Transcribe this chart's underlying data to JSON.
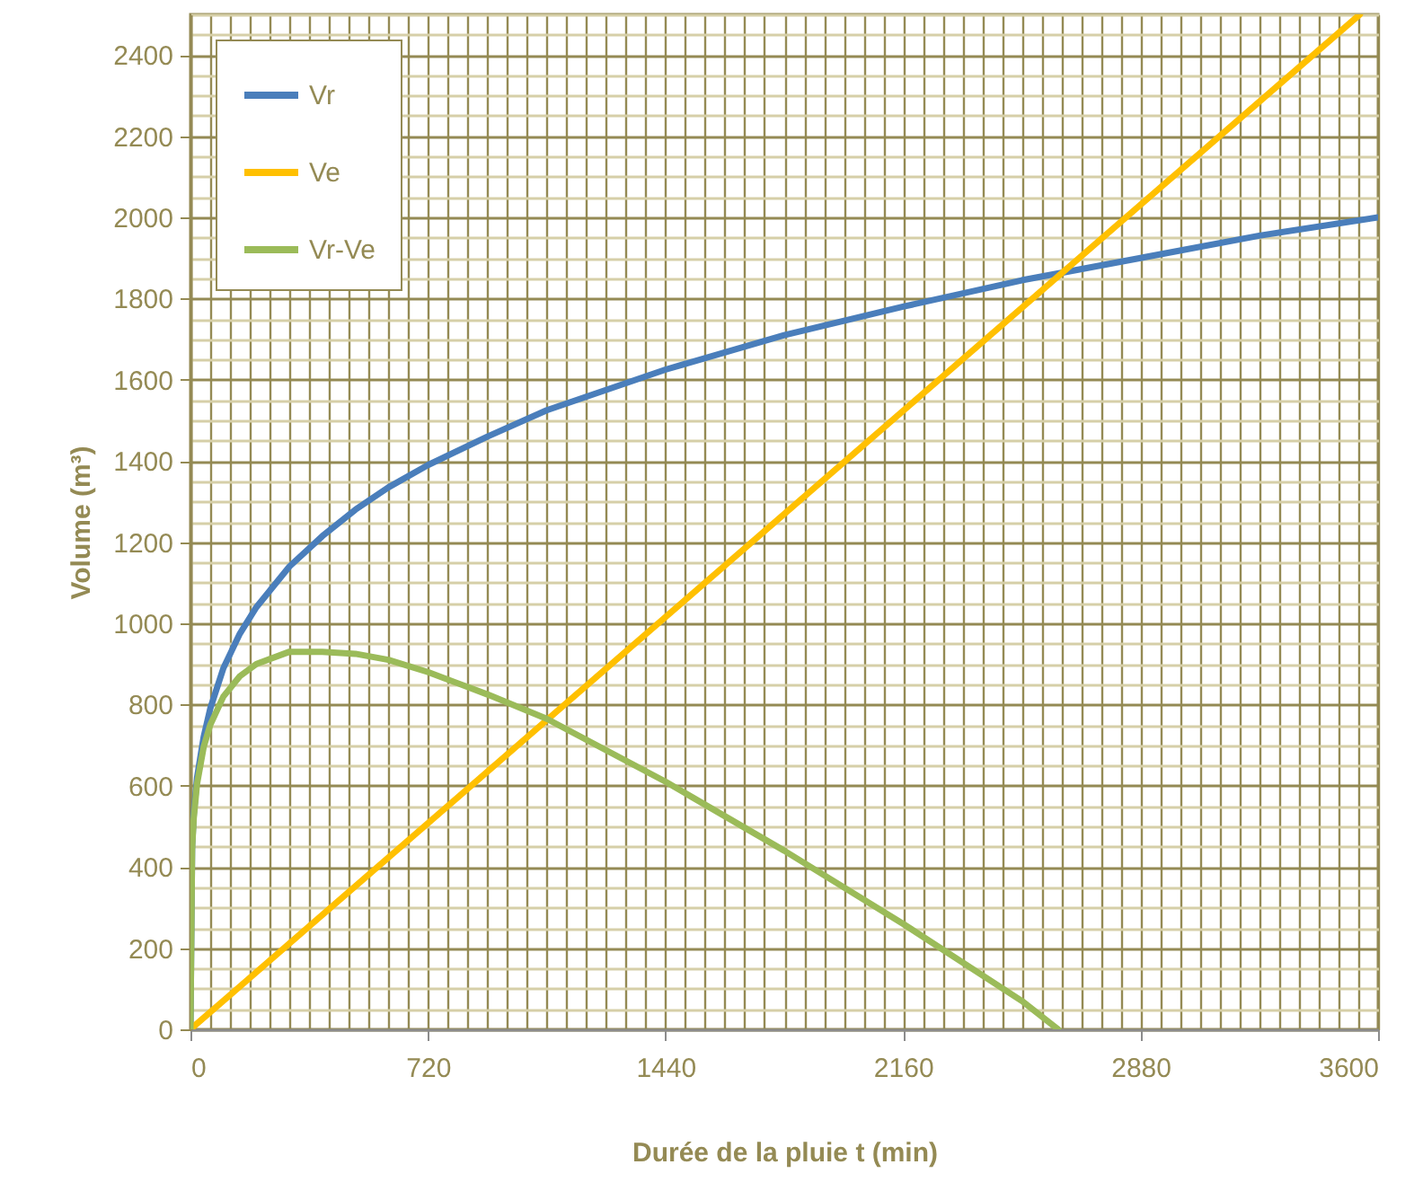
{
  "chart_data": {
    "type": "line",
    "xlabel": "Durée de la pluie t (min)",
    "ylabel": "Volume (m³)",
    "xlim": [
      0,
      3600
    ],
    "ylim": [
      0,
      2500
    ],
    "xticks": [
      0,
      {
        "value": 60,
        "label": null
      },
      {
        "value": 120,
        "label": null
      },
      {
        "value": 180,
        "label": null
      },
      {
        "value": 240,
        "label": null
      },
      {
        "value": 300,
        "label": null
      },
      {
        "value": 360,
        "label": null
      },
      {
        "value": 420,
        "label": null
      },
      {
        "value": 480,
        "label": null
      },
      {
        "value": 540,
        "label": null
      },
      {
        "value": 600,
        "label": null
      },
      {
        "value": 660,
        "label": null
      },
      720,
      {
        "value": 780,
        "label": null
      },
      {
        "value": 840,
        "label": null
      },
      {
        "value": 900,
        "label": null
      },
      {
        "value": 960,
        "label": null
      },
      {
        "value": 1020,
        "label": null
      },
      {
        "value": 1080,
        "label": null
      },
      {
        "value": 1140,
        "label": null
      },
      {
        "value": 1200,
        "label": null
      },
      {
        "value": 1260,
        "label": null
      },
      {
        "value": 1320,
        "label": null
      },
      {
        "value": 1380,
        "label": null
      },
      1440,
      {
        "value": 1500,
        "label": null
      },
      {
        "value": 1560,
        "label": null
      },
      {
        "value": 1620,
        "label": null
      },
      {
        "value": 1680,
        "label": null
      },
      {
        "value": 1740,
        "label": null
      },
      {
        "value": 1800,
        "label": null
      },
      {
        "value": 1860,
        "label": null
      },
      {
        "value": 1920,
        "label": null
      },
      {
        "value": 1980,
        "label": null
      },
      {
        "value": 2040,
        "label": null
      },
      {
        "value": 2100,
        "label": null
      },
      2160,
      {
        "value": 2220,
        "label": null
      },
      {
        "value": 2280,
        "label": null
      },
      {
        "value": 2340,
        "label": null
      },
      {
        "value": 2400,
        "label": null
      },
      {
        "value": 2460,
        "label": null
      },
      {
        "value": 2520,
        "label": null
      },
      {
        "value": 2580,
        "label": null
      },
      {
        "value": 2640,
        "label": null
      },
      {
        "value": 2700,
        "label": null
      },
      {
        "value": 2760,
        "label": null
      },
      {
        "value": 2820,
        "label": null
      },
      2880,
      {
        "value": 2940,
        "label": null
      },
      {
        "value": 3000,
        "label": null
      },
      {
        "value": 3060,
        "label": null
      },
      {
        "value": 3120,
        "label": null
      },
      {
        "value": 3180,
        "label": null
      },
      {
        "value": 3240,
        "label": null
      },
      {
        "value": 3300,
        "label": null
      },
      {
        "value": 3360,
        "label": null
      },
      {
        "value": 3420,
        "label": null
      },
      {
        "value": 3480,
        "label": null
      },
      {
        "value": 3540,
        "label": null
      },
      3600
    ],
    "yticks": [
      0,
      {
        "value": 50,
        "label": null
      },
      {
        "value": 100,
        "label": null
      },
      {
        "value": 150,
        "label": null
      },
      200,
      {
        "value": 250,
        "label": null
      },
      {
        "value": 300,
        "label": null
      },
      {
        "value": 350,
        "label": null
      },
      400,
      {
        "value": 450,
        "label": null
      },
      {
        "value": 500,
        "label": null
      },
      {
        "value": 550,
        "label": null
      },
      600,
      {
        "value": 650,
        "label": null
      },
      {
        "value": 700,
        "label": null
      },
      {
        "value": 750,
        "label": null
      },
      800,
      {
        "value": 850,
        "label": null
      },
      {
        "value": 900,
        "label": null
      },
      {
        "value": 950,
        "label": null
      },
      1000,
      {
        "value": 1050,
        "label": null
      },
      {
        "value": 1100,
        "label": null
      },
      {
        "value": 1150,
        "label": null
      },
      1200,
      {
        "value": 1250,
        "label": null
      },
      {
        "value": 1300,
        "label": null
      },
      {
        "value": 1350,
        "label": null
      },
      1400,
      {
        "value": 1450,
        "label": null
      },
      {
        "value": 1500,
        "label": null
      },
      {
        "value": 1550,
        "label": null
      },
      1600,
      {
        "value": 1650,
        "label": null
      },
      {
        "value": 1700,
        "label": null
      },
      {
        "value": 1750,
        "label": null
      },
      1800,
      {
        "value": 1850,
        "label": null
      },
      {
        "value": 1900,
        "label": null
      },
      {
        "value": 1950,
        "label": null
      },
      2000,
      {
        "value": 2050,
        "label": null
      },
      {
        "value": 2100,
        "label": null
      },
      {
        "value": 2150,
        "label": null
      },
      2200,
      {
        "value": 2250,
        "label": null
      },
      {
        "value": 2300,
        "label": null
      },
      {
        "value": 2350,
        "label": null
      },
      2400,
      {
        "value": 2450,
        "label": null
      },
      {
        "value": 2500,
        "label": null
      }
    ],
    "grid": true,
    "legend": "top left",
    "marker": "none",
    "line_style": "solid",
    "series": [
      {
        "name": "Vr",
        "color": "#4a7ebb",
        "x": [
          0,
          5,
          10,
          20,
          40,
          60,
          100,
          150,
          200,
          300,
          400,
          500,
          600,
          720,
          900,
          1080,
          1440,
          1800,
          2160,
          2520,
          2880,
          3240,
          3600
        ],
        "values": [
          0,
          450,
          530,
          620,
          720,
          790,
          890,
          975,
          1040,
          1140,
          1215,
          1280,
          1335,
          1390,
          1460,
          1525,
          1625,
          1710,
          1780,
          1845,
          1900,
          1955,
          2000
        ]
      },
      {
        "name": "Ve",
        "color": "#ffc000",
        "x": [
          0,
          3545
        ],
        "values": [
          0,
          2500
        ]
      },
      {
        "name": "Vr-Ve",
        "color": "#9bbb59",
        "x": [
          0,
          5,
          10,
          20,
          40,
          60,
          100,
          150,
          200,
          300,
          400,
          500,
          600,
          720,
          900,
          1080,
          1440,
          1800,
          2160,
          2520,
          2630
        ],
        "values": [
          0,
          445,
          520,
          605,
          695,
          750,
          820,
          870,
          900,
          930,
          930,
          925,
          910,
          880,
          825,
          765,
          610,
          440,
          260,
          70,
          0
        ]
      }
    ]
  }
}
